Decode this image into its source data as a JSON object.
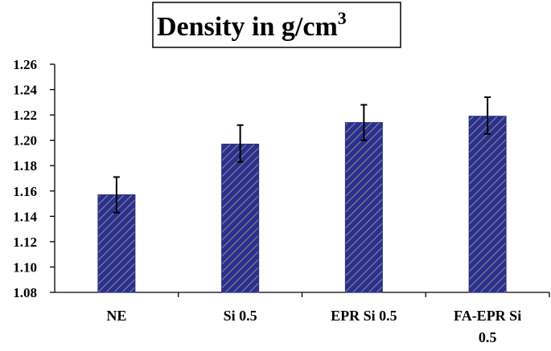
{
  "chart_data": {
    "type": "bar",
    "title": "Density in g/cm",
    "title_superscript": "3",
    "categories": [
      "NE",
      "Si 0.5",
      "EPR Si 0.5",
      "FA-EPR Si 0.5"
    ],
    "values": [
      1.157,
      1.197,
      1.214,
      1.219
    ],
    "error_high": [
      1.171,
      1.212,
      1.228,
      1.234
    ],
    "error_low": [
      1.143,
      1.183,
      1.2,
      1.205
    ],
    "ylim": [
      1.08,
      1.26
    ],
    "yticks": [
      1.08,
      1.1,
      1.12,
      1.14,
      1.16,
      1.18,
      1.2,
      1.22,
      1.24,
      1.26
    ],
    "ytick_labels": [
      "1.08",
      "1.10",
      "1.12",
      "1.14",
      "1.16",
      "1.18",
      "1.20",
      "1.22",
      "1.24",
      "1.26"
    ],
    "xlabel": "",
    "ylabel": "",
    "grid": false,
    "legend": "none",
    "bar_fill": "#2b2f8f",
    "bar_hatch": "#8a8a8a"
  }
}
